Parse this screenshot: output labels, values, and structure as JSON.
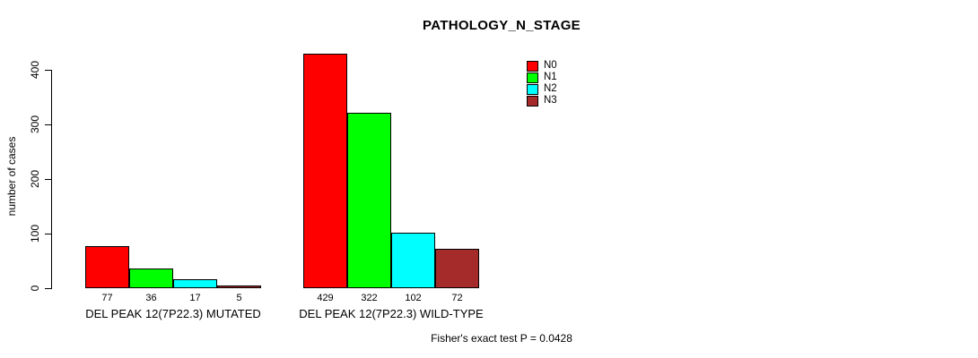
{
  "chart_data": {
    "type": "bar",
    "title": "PATHOLOGY_N_STAGE",
    "ylabel": "number of cases",
    "xlabel": "",
    "ylim": [
      0,
      400
    ],
    "yticks": [
      0,
      100,
      200,
      300,
      400
    ],
    "grid": false,
    "legend_position": "top-right-inside",
    "bar_value_labels": true,
    "categories": [
      "DEL PEAK 12(7P22.3) MUTATED",
      "DEL PEAK 12(7P22.3) WILD-TYPE"
    ],
    "series": [
      {
        "name": "N0",
        "color": "#ff0000",
        "values": [
          77,
          429
        ]
      },
      {
        "name": "N1",
        "color": "#00ff00",
        "values": [
          36,
          322
        ]
      },
      {
        "name": "N2",
        "color": "#00ffff",
        "values": [
          17,
          102
        ]
      },
      {
        "name": "N3",
        "color": "#a52a2a",
        "values": [
          5,
          72
        ]
      }
    ],
    "annotation": "Fisher's exact test P = 0.0428"
  }
}
